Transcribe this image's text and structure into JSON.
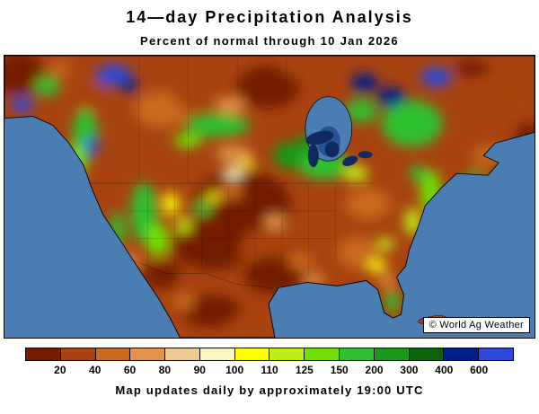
{
  "title": "14—day Precipitation Analysis",
  "subtitle": "Percent of normal through 10 Jan 2026",
  "footer": "Map updates daily by approximately 19:00 UTC",
  "copyright": "© World Ag Weather",
  "map": {
    "ocean_color": "#4a7eb2",
    "land_base_color": "#a84311",
    "lake_color": "#0e2a60",
    "bay_deep_color": "#1d3f8c",
    "colorbar": {
      "labels": [
        "20",
        "40",
        "60",
        "80",
        "90",
        "100",
        "110",
        "125",
        "150",
        "200",
        "300",
        "400",
        "600"
      ],
      "colors": [
        "#741b00",
        "#a84311",
        "#c96a1e",
        "#e29548",
        "#efc894",
        "#f9f6c0",
        "#ffff00",
        "#bfef16",
        "#72e000",
        "#2fc12f",
        "#189718",
        "#0a640a",
        "#001f8c",
        "#2e48d8"
      ]
    }
  }
}
